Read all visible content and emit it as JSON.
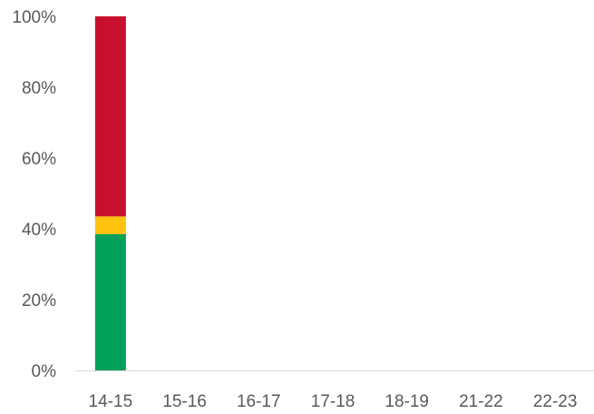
{
  "chart_data": {
    "type": "bar",
    "stacked": true,
    "percent": true,
    "categories": [
      "14-15",
      "15-16",
      "16-17",
      "17-18",
      "18-19",
      "21-22",
      "22-23"
    ],
    "series": [
      {
        "color": "#00A05A",
        "values": [
          38.5,
          null,
          null,
          null,
          null,
          null,
          null
        ]
      },
      {
        "color": "#FFC20E",
        "values": [
          5,
          null,
          null,
          null,
          null,
          null,
          null
        ]
      },
      {
        "color": "#C8102E",
        "values": [
          56.5,
          null,
          null,
          null,
          null,
          null,
          null
        ]
      }
    ],
    "title": "",
    "xlabel": "",
    "ylabel": "",
    "ylim": [
      0,
      100
    ],
    "yticks": [
      "0%",
      "20%",
      "40%",
      "60%",
      "80%",
      "100%"
    ],
    "grid": false,
    "legend": "none",
    "colors": {
      "axis_line": "#D9D9D9",
      "tick_text": "#595959",
      "background": "#FFFFFF"
    }
  }
}
